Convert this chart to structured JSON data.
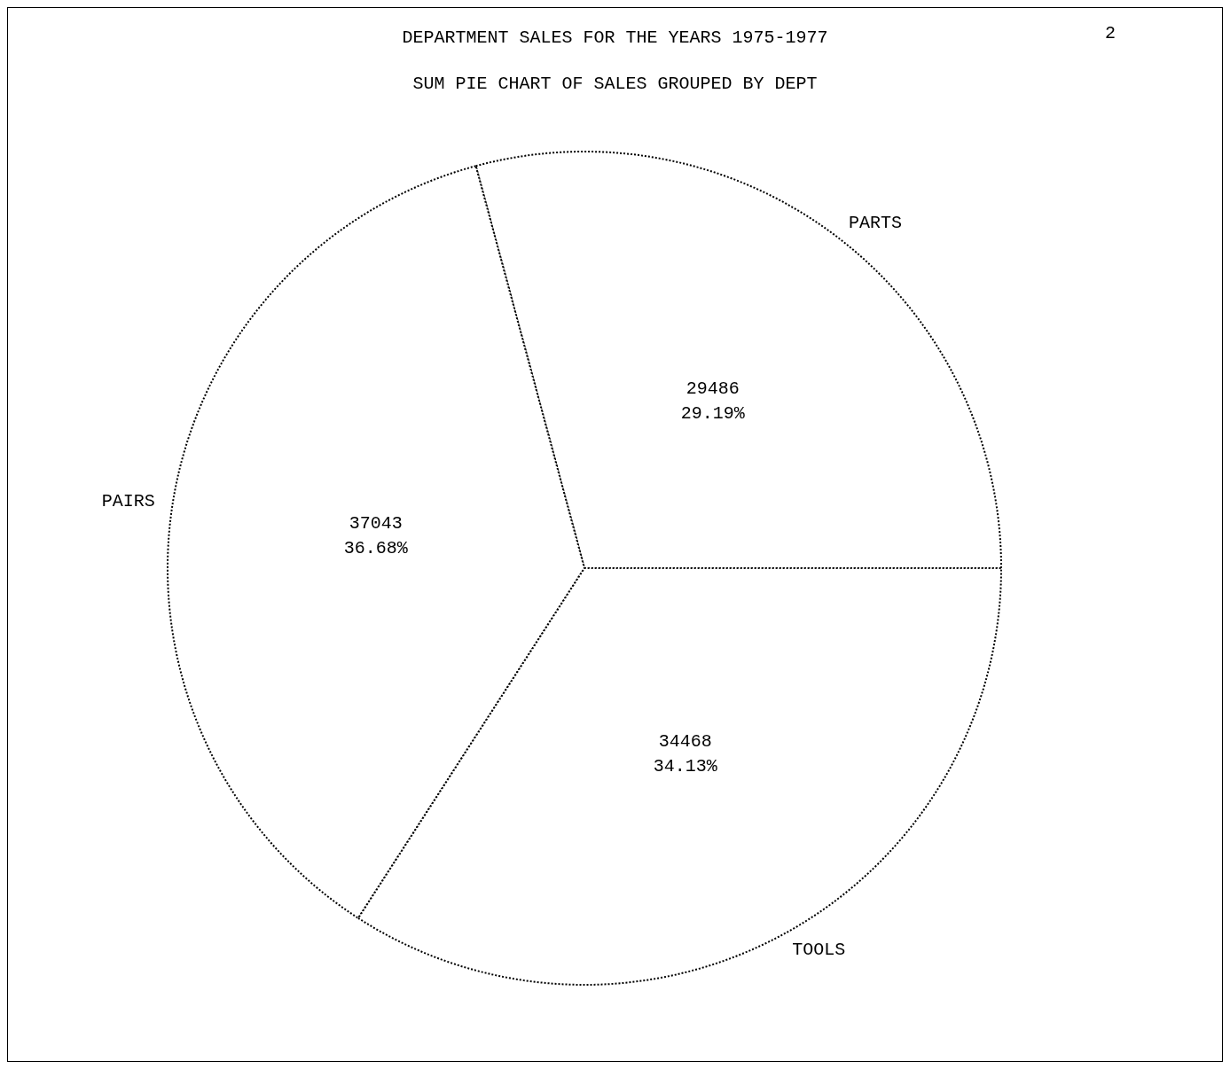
{
  "chart_data": {
    "type": "pie",
    "title": "DEPARTMENT SALES FOR THE YEARS 1975-1977",
    "subtitle": "SUM PIE CHART OF SALES GROUPED BY DEPT",
    "annotations": [
      "2"
    ],
    "categories": [
      "PARTS",
      "PAIRS",
      "TOOLS"
    ],
    "values": [
      29486,
      37043,
      34468
    ],
    "value_labels": [
      "29486\n29.19%",
      "37043\n36.68%",
      "34468\n34.13%"
    ],
    "colors": [
      "#ffffff",
      "#ffffff",
      "#ffffff"
    ],
    "legend": false
  }
}
